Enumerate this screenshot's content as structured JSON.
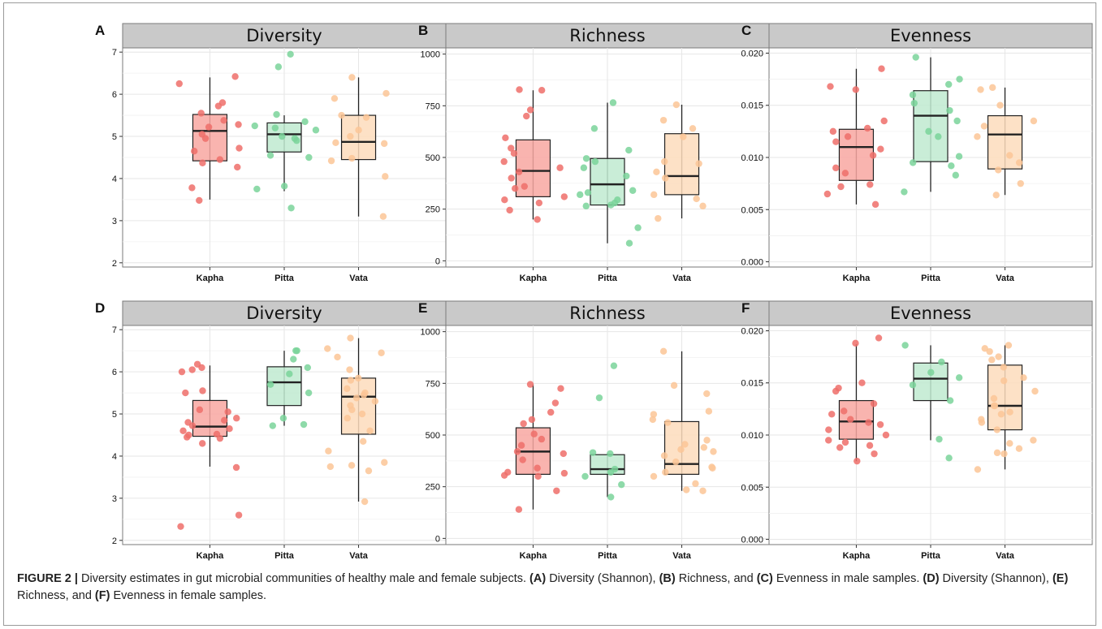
{
  "caption": {
    "label": "FIGURE 2 |",
    "parts": [
      {
        "t": " Diversity estimates in gut microbial communities of healthy male and female subjects. ",
        "b": false
      },
      {
        "t": "(A)",
        "b": true
      },
      {
        "t": " Diversity (Shannon), ",
        "b": false
      },
      {
        "t": "(B)",
        "b": true
      },
      {
        "t": " Richness, and ",
        "b": false
      },
      {
        "t": "(C)",
        "b": true
      },
      {
        "t": " Evenness in male samples. ",
        "b": false
      },
      {
        "t": "(D)",
        "b": true
      },
      {
        "t": " Diversity (Shannon), ",
        "b": false
      },
      {
        "t": "(E)",
        "b": true
      },
      {
        "t": " Richness, and ",
        "b": false
      },
      {
        "t": "(F)",
        "b": true
      },
      {
        "t": " Evenness in female samples.",
        "b": false
      }
    ]
  },
  "colors": {
    "Kapha": {
      "fill": "#f8a7a1",
      "point": "#ee6e6a"
    },
    "Pitta": {
      "fill": "#c0ead0",
      "point": "#7ad39a"
    },
    "Vata": {
      "fill": "#fddcbc",
      "point": "#fcc597"
    },
    "strip": "#c9c9c9",
    "grid": "#e6e6e6"
  },
  "chart_data": [
    {
      "panel": "A",
      "type": "box",
      "title": "Diversity",
      "categories": [
        "Kapha",
        "Pitta",
        "Vata"
      ],
      "ylim": [
        1.9,
        7.1
      ],
      "yticks": [
        2,
        3,
        4,
        5,
        6,
        7
      ],
      "yticklabels": [
        "2",
        "3",
        "4",
        "5",
        "6",
        "7"
      ],
      "series": [
        {
          "category": "Kapha",
          "box": {
            "min": 3.5,
            "q1": 4.42,
            "median": 5.13,
            "q3": 5.52,
            "max": 6.4
          },
          "points": [
            3.48,
            3.78,
            4.27,
            4.37,
            4.45,
            4.65,
            4.72,
            4.95,
            5.05,
            5.22,
            5.28,
            5.38,
            5.55,
            5.72,
            5.8,
            6.25,
            6.42
          ]
        },
        {
          "category": "Pitta",
          "box": {
            "min": 3.7,
            "q1": 4.63,
            "median": 5.05,
            "q3": 5.32,
            "max": 5.5
          },
          "points": [
            3.3,
            3.75,
            3.82,
            4.5,
            4.55,
            4.9,
            4.95,
            5.0,
            5.15,
            5.2,
            5.25,
            5.35,
            5.52,
            6.65,
            6.95
          ]
        },
        {
          "category": "Vata",
          "box": {
            "min": 3.1,
            "q1": 4.45,
            "median": 4.87,
            "q3": 5.5,
            "max": 6.4
          },
          "points": [
            3.1,
            4.05,
            4.42,
            4.48,
            4.83,
            4.85,
            5.0,
            5.15,
            5.45,
            5.5,
            5.9,
            6.02,
            6.4
          ]
        }
      ]
    },
    {
      "panel": "B",
      "type": "box",
      "title": "Richness",
      "categories": [
        "Kapha",
        "Pitta",
        "Vata"
      ],
      "ylim": [
        -30,
        1030
      ],
      "yticks": [
        0,
        250,
        500,
        750,
        1000
      ],
      "yticklabels": [
        "0",
        "250",
        "500",
        "750",
        "1000"
      ],
      "series": [
        {
          "category": "Kapha",
          "box": {
            "min": 200,
            "q1": 310,
            "median": 435,
            "q3": 585,
            "max": 825
          },
          "points": [
            200,
            245,
            280,
            295,
            310,
            350,
            360,
            400,
            430,
            450,
            480,
            520,
            545,
            595,
            700,
            730,
            825,
            828
          ]
        },
        {
          "category": "Pitta",
          "box": {
            "min": 85,
            "q1": 270,
            "median": 370,
            "q3": 495,
            "max": 765
          },
          "points": [
            85,
            160,
            265,
            270,
            280,
            295,
            320,
            330,
            340,
            410,
            450,
            480,
            495,
            535,
            640,
            765
          ]
        },
        {
          "category": "Vata",
          "box": {
            "min": 205,
            "q1": 320,
            "median": 410,
            "q3": 615,
            "max": 755
          },
          "points": [
            205,
            265,
            300,
            320,
            400,
            430,
            470,
            480,
            600,
            640,
            680,
            755
          ]
        }
      ]
    },
    {
      "panel": "C",
      "type": "box",
      "title": "Evenness",
      "categories": [
        "Kapha",
        "Pitta",
        "Vata"
      ],
      "ylim": [
        -0.0005,
        0.0205
      ],
      "yticks": [
        0,
        0.005,
        0.01,
        0.015,
        0.02
      ],
      "yticklabels": [
        "0.000",
        "0.005",
        "0.010",
        "0.015",
        "0.020"
      ],
      "series": [
        {
          "category": "Kapha",
          "box": {
            "min": 0.0055,
            "q1": 0.0078,
            "median": 0.011,
            "q3": 0.0127,
            "max": 0.0185
          },
          "points": [
            0.0055,
            0.0065,
            0.0072,
            0.0074,
            0.0085,
            0.009,
            0.0102,
            0.0108,
            0.0115,
            0.012,
            0.0125,
            0.0128,
            0.0135,
            0.0165,
            0.0168,
            0.0185
          ]
        },
        {
          "category": "Pitta",
          "box": {
            "min": 0.0067,
            "q1": 0.0096,
            "median": 0.014,
            "q3": 0.0164,
            "max": 0.0196
          },
          "points": [
            0.0067,
            0.0083,
            0.0092,
            0.0095,
            0.0101,
            0.012,
            0.0125,
            0.0135,
            0.0145,
            0.0152,
            0.016,
            0.017,
            0.0175,
            0.0196
          ]
        },
        {
          "category": "Vata",
          "box": {
            "min": 0.0064,
            "q1": 0.0089,
            "median": 0.0122,
            "q3": 0.014,
            "max": 0.0167
          },
          "points": [
            0.0064,
            0.0075,
            0.0088,
            0.0095,
            0.0102,
            0.012,
            0.013,
            0.0135,
            0.015,
            0.0165,
            0.0167
          ]
        }
      ]
    },
    {
      "panel": "D",
      "type": "box",
      "title": "Diversity",
      "categories": [
        "Kapha",
        "Pitta",
        "Vata"
      ],
      "ylim": [
        1.9,
        7.1
      ],
      "yticks": [
        2,
        3,
        4,
        5,
        6,
        7
      ],
      "yticklabels": [
        "2",
        "3",
        "4",
        "5",
        "6",
        "7"
      ],
      "series": [
        {
          "category": "Kapha",
          "box": {
            "min": 3.75,
            "q1": 4.47,
            "median": 4.7,
            "q3": 5.32,
            "max": 6.15
          },
          "points": [
            2.33,
            2.6,
            3.73,
            4.3,
            4.42,
            4.45,
            4.5,
            4.52,
            4.6,
            4.65,
            4.72,
            4.8,
            4.85,
            4.9,
            5.05,
            5.1,
            5.5,
            5.55,
            6.0,
            6.05,
            6.1,
            6.18
          ]
        },
        {
          "category": "Pitta",
          "box": {
            "min": 4.72,
            "q1": 5.2,
            "median": 5.75,
            "q3": 6.12,
            "max": 6.5
          },
          "points": [
            4.72,
            4.75,
            4.9,
            5.5,
            5.7,
            5.95,
            6.1,
            6.3,
            6.5,
            6.5
          ]
        },
        {
          "category": "Vata",
          "box": {
            "min": 2.92,
            "q1": 4.52,
            "median": 5.41,
            "q3": 5.85,
            "max": 6.8
          },
          "points": [
            2.92,
            3.65,
            3.75,
            3.78,
            3.85,
            4.12,
            4.35,
            4.6,
            4.9,
            5.0,
            5.1,
            5.2,
            5.3,
            5.38,
            5.45,
            5.5,
            5.6,
            5.8,
            5.85,
            6.05,
            6.35,
            6.45,
            6.55,
            6.8
          ]
        }
      ]
    },
    {
      "panel": "E",
      "type": "box",
      "title": "Richness",
      "categories": [
        "Kapha",
        "Pitta",
        "Vata"
      ],
      "ylim": [
        -30,
        1030
      ],
      "yticks": [
        0,
        250,
        500,
        750,
        1000
      ],
      "yticklabels": [
        "0",
        "250",
        "500",
        "750",
        "1000"
      ],
      "series": [
        {
          "category": "Kapha",
          "box": {
            "min": 140,
            "q1": 310,
            "median": 420,
            "q3": 535,
            "max": 745
          },
          "points": [
            140,
            230,
            300,
            305,
            315,
            320,
            340,
            380,
            410,
            420,
            450,
            480,
            505,
            555,
            575,
            610,
            655,
            725,
            745
          ]
        },
        {
          "category": "Pitta",
          "box": {
            "min": 200,
            "q1": 310,
            "median": 335,
            "q3": 405,
            "max": 410
          },
          "points": [
            200,
            260,
            300,
            320,
            335,
            410,
            415,
            680,
            835
          ]
        },
        {
          "category": "Vata",
          "box": {
            "min": 230,
            "q1": 310,
            "median": 360,
            "q3": 565,
            "max": 905
          },
          "points": [
            230,
            235,
            265,
            300,
            320,
            340,
            345,
            370,
            400,
            420,
            430,
            440,
            455,
            475,
            560,
            575,
            600,
            615,
            700,
            740,
            905
          ]
        }
      ]
    },
    {
      "panel": "F",
      "type": "box",
      "title": "Evenness",
      "categories": [
        "Kapha",
        "Pitta",
        "Vata"
      ],
      "ylim": [
        -0.0005,
        0.0205
      ],
      "yticks": [
        0,
        0.005,
        0.01,
        0.015,
        0.02
      ],
      "yticklabels": [
        "0.000",
        "0.005",
        "0.010",
        "0.015",
        "0.020"
      ],
      "series": [
        {
          "category": "Kapha",
          "box": {
            "min": 0.0075,
            "q1": 0.0096,
            "median": 0.0113,
            "q3": 0.0133,
            "max": 0.0187
          },
          "points": [
            0.0075,
            0.0082,
            0.0088,
            0.009,
            0.0093,
            0.0095,
            0.01,
            0.0105,
            0.011,
            0.0112,
            0.0115,
            0.012,
            0.0123,
            0.013,
            0.0142,
            0.0145,
            0.015,
            0.0188,
            0.0193
          ]
        },
        {
          "category": "Pitta",
          "box": {
            "min": 0.0095,
            "q1": 0.0133,
            "median": 0.0154,
            "q3": 0.0169,
            "max": 0.0186
          },
          "points": [
            0.0078,
            0.0096,
            0.0133,
            0.0148,
            0.0155,
            0.016,
            0.017,
            0.0186
          ]
        },
        {
          "category": "Vata",
          "box": {
            "min": 0.0067,
            "q1": 0.0105,
            "median": 0.0128,
            "q3": 0.0167,
            "max": 0.0186
          },
          "points": [
            0.0067,
            0.0082,
            0.0083,
            0.0087,
            0.0092,
            0.0095,
            0.0105,
            0.0112,
            0.0115,
            0.012,
            0.0122,
            0.0128,
            0.0128,
            0.0135,
            0.0142,
            0.0152,
            0.0155,
            0.0165,
            0.0172,
            0.0175,
            0.018,
            0.0183,
            0.0186
          ]
        }
      ]
    }
  ]
}
